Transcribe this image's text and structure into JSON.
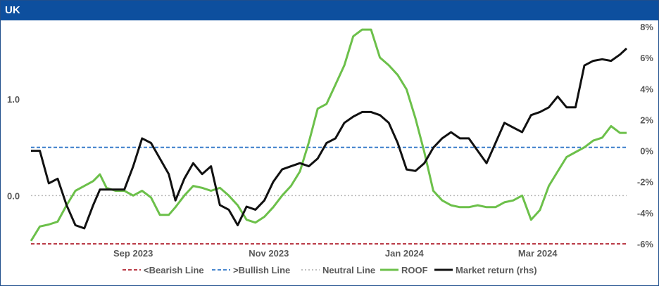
{
  "title": "UK",
  "chart_data": {
    "type": "line",
    "x_ticks": [
      "Sep 2023",
      "Nov 2023",
      "Jan 2024",
      "Mar 2024"
    ],
    "y_left_ticks": [
      "1.0",
      "0.0"
    ],
    "y_right_ticks": [
      "8%",
      "6%",
      "4%",
      "2%",
      "0%",
      "-2%",
      "-4%",
      "-6%"
    ],
    "y_left_lim": [
      -0.5,
      1.75
    ],
    "y_right_lim": [
      -6,
      8
    ],
    "x_range": [
      "2023-08-01",
      "2024-04-25"
    ],
    "legend_position": "bottom",
    "reference_lines": [
      {
        "name": "<Bearish Line",
        "value": -0.5,
        "axis": "left",
        "color": "#b0202e",
        "style": "dashed"
      },
      {
        "name": ">Bullish Line",
        "value": 0.5,
        "axis": "left",
        "color": "#2e75c7",
        "style": "dashed"
      },
      {
        "name": "Neutral Line",
        "value": 0.0,
        "axis": "left",
        "color": "#b8b8b8",
        "style": "dotted"
      }
    ],
    "series": [
      {
        "name": "ROOF",
        "axis": "left",
        "color": "#6cc04a",
        "x": [
          "2023-08-01",
          "2023-08-05",
          "2023-08-09",
          "2023-08-13",
          "2023-08-17",
          "2023-08-21",
          "2023-08-25",
          "2023-08-29",
          "2023-09-01",
          "2023-09-04",
          "2023-09-08",
          "2023-09-12",
          "2023-09-16",
          "2023-09-20",
          "2023-09-24",
          "2023-09-28",
          "2023-10-02",
          "2023-10-05",
          "2023-10-09",
          "2023-10-13",
          "2023-10-17",
          "2023-10-21",
          "2023-10-25",
          "2023-10-29",
          "2023-11-02",
          "2023-11-06",
          "2023-11-10",
          "2023-11-14",
          "2023-11-18",
          "2023-11-22",
          "2023-11-26",
          "2023-11-30",
          "2023-12-04",
          "2023-12-08",
          "2023-12-12",
          "2023-12-16",
          "2023-12-20",
          "2023-12-24",
          "2023-12-28",
          "2024-01-01",
          "2024-01-05",
          "2024-01-09",
          "2024-01-13",
          "2024-01-17",
          "2024-01-21",
          "2024-01-25",
          "2024-01-29",
          "2024-02-02",
          "2024-02-06",
          "2024-02-10",
          "2024-02-14",
          "2024-02-18",
          "2024-02-22",
          "2024-02-26",
          "2024-03-01",
          "2024-03-05",
          "2024-03-09",
          "2024-03-13",
          "2024-03-17",
          "2024-03-21",
          "2024-03-25",
          "2024-03-29",
          "2024-04-02",
          "2024-04-06",
          "2024-04-10",
          "2024-04-14",
          "2024-04-18",
          "2024-04-22",
          "2024-04-25"
        ],
        "y": [
          -0.47,
          -0.32,
          -0.3,
          -0.27,
          -0.1,
          0.05,
          0.1,
          0.15,
          0.22,
          0.08,
          0.05,
          0.05,
          0.0,
          0.05,
          -0.02,
          -0.2,
          -0.2,
          -0.12,
          0.0,
          0.1,
          0.08,
          0.05,
          0.08,
          0.0,
          -0.1,
          -0.25,
          -0.28,
          -0.22,
          -0.12,
          0.0,
          0.1,
          0.25,
          0.55,
          0.9,
          0.95,
          1.15,
          1.35,
          1.65,
          1.72,
          1.72,
          1.43,
          1.35,
          1.25,
          1.1,
          0.8,
          0.45,
          0.05,
          -0.05,
          -0.1,
          -0.12,
          -0.12,
          -0.1,
          -0.12,
          -0.12,
          -0.07,
          -0.05,
          0.0,
          -0.25,
          -0.15,
          0.1,
          0.25,
          0.4,
          0.45,
          0.5,
          0.57,
          0.6,
          0.72,
          0.65,
          0.65
        ]
      },
      {
        "name": "Market return (rhs)",
        "axis": "right",
        "color": "#111111",
        "x": [
          "2023-08-01",
          "2023-08-05",
          "2023-08-09",
          "2023-08-13",
          "2023-08-17",
          "2023-08-21",
          "2023-08-25",
          "2023-08-29",
          "2023-09-01",
          "2023-09-04",
          "2023-09-08",
          "2023-09-12",
          "2023-09-16",
          "2023-09-20",
          "2023-09-24",
          "2023-09-28",
          "2023-10-02",
          "2023-10-05",
          "2023-10-09",
          "2023-10-13",
          "2023-10-17",
          "2023-10-21",
          "2023-10-25",
          "2023-10-29",
          "2023-11-02",
          "2023-11-06",
          "2023-11-10",
          "2023-11-14",
          "2023-11-18",
          "2023-11-22",
          "2023-11-26",
          "2023-11-30",
          "2023-12-04",
          "2023-12-08",
          "2023-12-12",
          "2023-12-16",
          "2023-12-20",
          "2023-12-24",
          "2023-12-28",
          "2024-01-01",
          "2024-01-05",
          "2024-01-09",
          "2024-01-13",
          "2024-01-17",
          "2024-01-21",
          "2024-01-25",
          "2024-01-29",
          "2024-02-02",
          "2024-02-06",
          "2024-02-10",
          "2024-02-14",
          "2024-02-18",
          "2024-02-22",
          "2024-02-26",
          "2024-03-01",
          "2024-03-05",
          "2024-03-09",
          "2024-03-13",
          "2024-03-17",
          "2024-03-21",
          "2024-03-25",
          "2024-03-29",
          "2024-04-02",
          "2024-04-06",
          "2024-04-10",
          "2024-04-14",
          "2024-04-18",
          "2024-04-22",
          "2024-04-25"
        ],
        "y": [
          0.0,
          0.0,
          -2.1,
          -1.8,
          -3.5,
          -4.8,
          -5.0,
          -3.5,
          -2.5,
          -2.5,
          -2.5,
          -2.5,
          -1.0,
          0.8,
          0.5,
          -0.5,
          -1.5,
          -3.2,
          -1.8,
          -0.8,
          -1.5,
          -1.0,
          -3.5,
          -3.8,
          -4.8,
          -3.6,
          -3.8,
          -3.2,
          -2.0,
          -1.2,
          -1.0,
          -0.8,
          -1.0,
          -0.5,
          0.5,
          0.8,
          1.8,
          2.2,
          2.5,
          2.5,
          2.3,
          1.8,
          0.5,
          -1.2,
          -1.3,
          -0.8,
          0.2,
          0.8,
          1.2,
          0.8,
          0.8,
          0.0,
          -0.8,
          0.5,
          1.8,
          1.5,
          1.2,
          2.3,
          2.5,
          2.8,
          3.5,
          2.8,
          2.8,
          5.5,
          5.8,
          5.9,
          5.8,
          6.2,
          6.6
        ]
      }
    ]
  }
}
